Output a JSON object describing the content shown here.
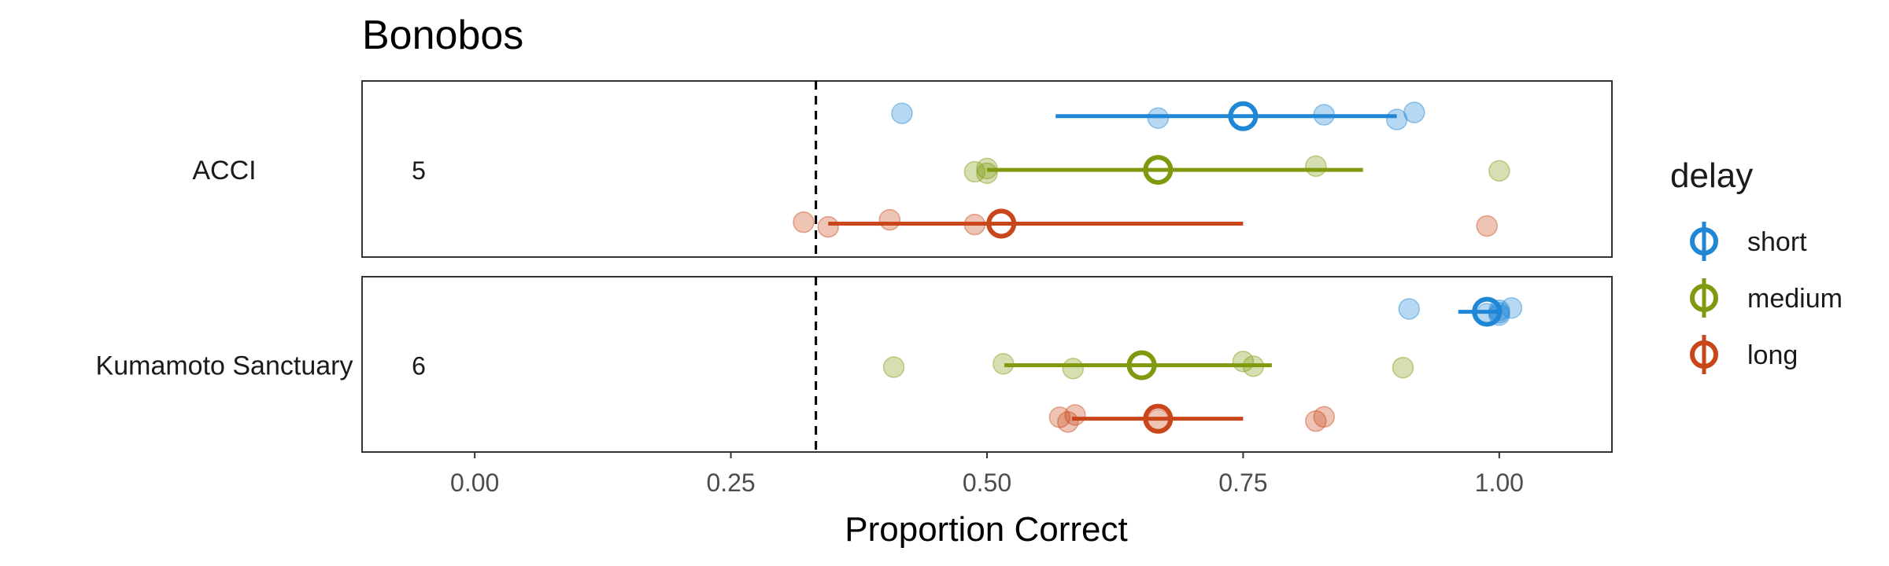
{
  "chart_data": {
    "type": "scatter",
    "title": "Bonobos",
    "xlabel": "Proportion Correct",
    "ylabel": "",
    "xlim": [
      -0.11,
      1.11
    ],
    "x_ticks": [
      0,
      0.25,
      0.5,
      0.75,
      1.0
    ],
    "x_tick_labels": [
      "0.00",
      "0.25",
      "0.50",
      "0.75",
      "1.00"
    ],
    "chance_line_x": 0.333,
    "grid": false,
    "legend_title": "delay",
    "legend_position": "right",
    "series": [
      {
        "name": "short",
        "color": "#1f87d6"
      },
      {
        "name": "medium",
        "color": "#7f9a0e"
      },
      {
        "name": "long",
        "color": "#c9461a"
      }
    ],
    "panels": [
      {
        "label": "ACCI",
        "n_label": "5",
        "groups": [
          {
            "delay": "short",
            "mean": 0.75,
            "ci": [
              0.567,
              0.9
            ],
            "points": [
              0.417,
              0.667,
              0.829,
              0.9,
              0.917
            ]
          },
          {
            "delay": "medium",
            "mean": 0.667,
            "ci": [
              0.5,
              0.867
            ],
            "points": [
              0.488,
              0.5,
              0.5,
              0.821,
              1.0
            ]
          },
          {
            "delay": "long",
            "mean": 0.514,
            "ci": [
              0.345,
              0.75
            ],
            "points": [
              0.321,
              0.345,
              0.405,
              0.488,
              0.988
            ]
          }
        ]
      },
      {
        "label": "Kumamoto Sanctuary",
        "n_label": "6",
        "groups": [
          {
            "delay": "short",
            "mean": 0.988,
            "ci": [
              0.96,
              1.0
            ],
            "points": [
              0.912,
              0.988,
              1.0,
              1.0,
              1.012,
              1.0
            ]
          },
          {
            "delay": "medium",
            "mean": 0.651,
            "ci": [
              0.517,
              0.778
            ],
            "points": [
              0.409,
              0.516,
              0.584,
              0.75,
              0.76,
              0.906
            ]
          },
          {
            "delay": "long",
            "mean": 0.667,
            "ci": [
              0.583,
              0.75
            ],
            "points": [
              0.571,
              0.579,
              0.586,
              0.667,
              0.821,
              0.829
            ]
          }
        ]
      }
    ]
  }
}
